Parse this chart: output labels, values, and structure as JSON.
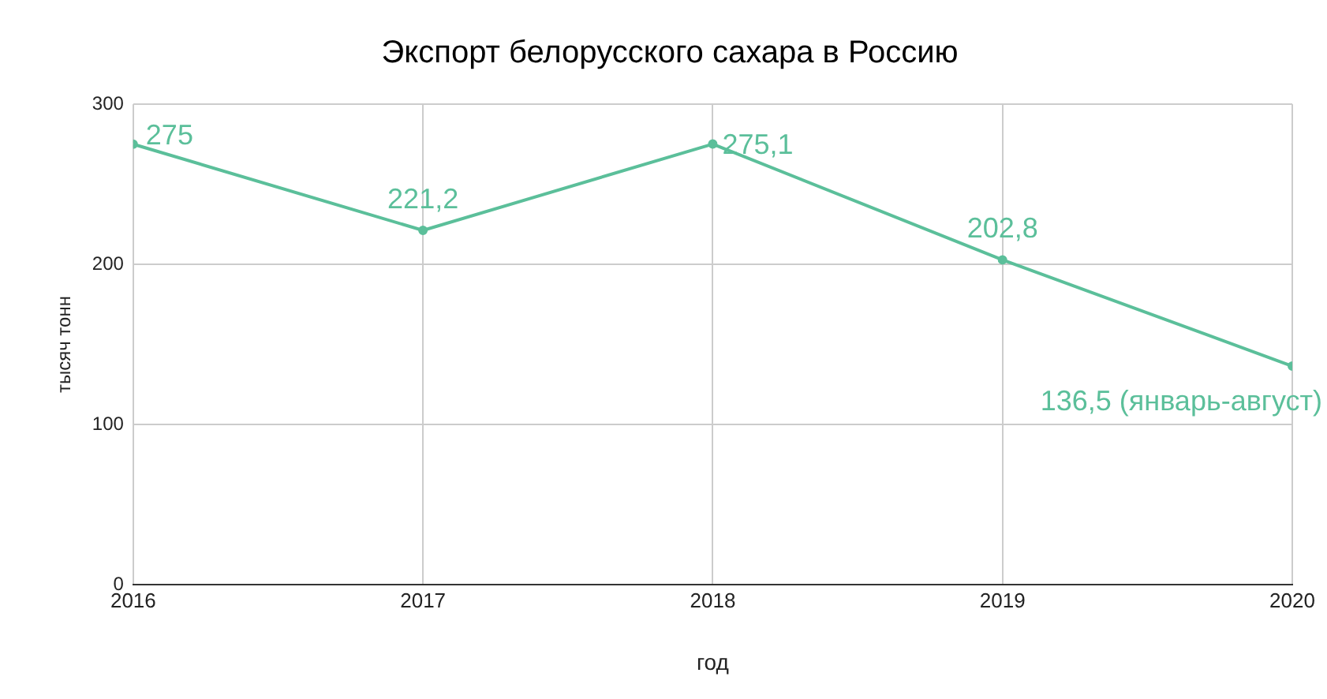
{
  "chart_data": {
    "type": "line",
    "title": "Экспорт белорусского сахара в Россию",
    "xlabel": "год",
    "ylabel": "тысяч тонн",
    "x": [
      2016,
      2017,
      2018,
      2019,
      2020
    ],
    "series": [
      {
        "color": "#5bbf9a",
        "values": [
          275,
          221.2,
          275.1,
          202.8,
          136.5
        ],
        "value_labels": [
          "275",
          "221,2",
          "275,1",
          "202,8",
          "136,5 (январь-август)"
        ]
      }
    ],
    "xlim": [
      2016,
      2020
    ],
    "xticks": [
      2016,
      2017,
      2018,
      2019,
      2020
    ],
    "ylim": [
      0,
      300
    ],
    "yticks": [
      0,
      100,
      200,
      300
    ],
    "grid": true,
    "legend": false,
    "marker": "circle",
    "line_style": "solid"
  }
}
